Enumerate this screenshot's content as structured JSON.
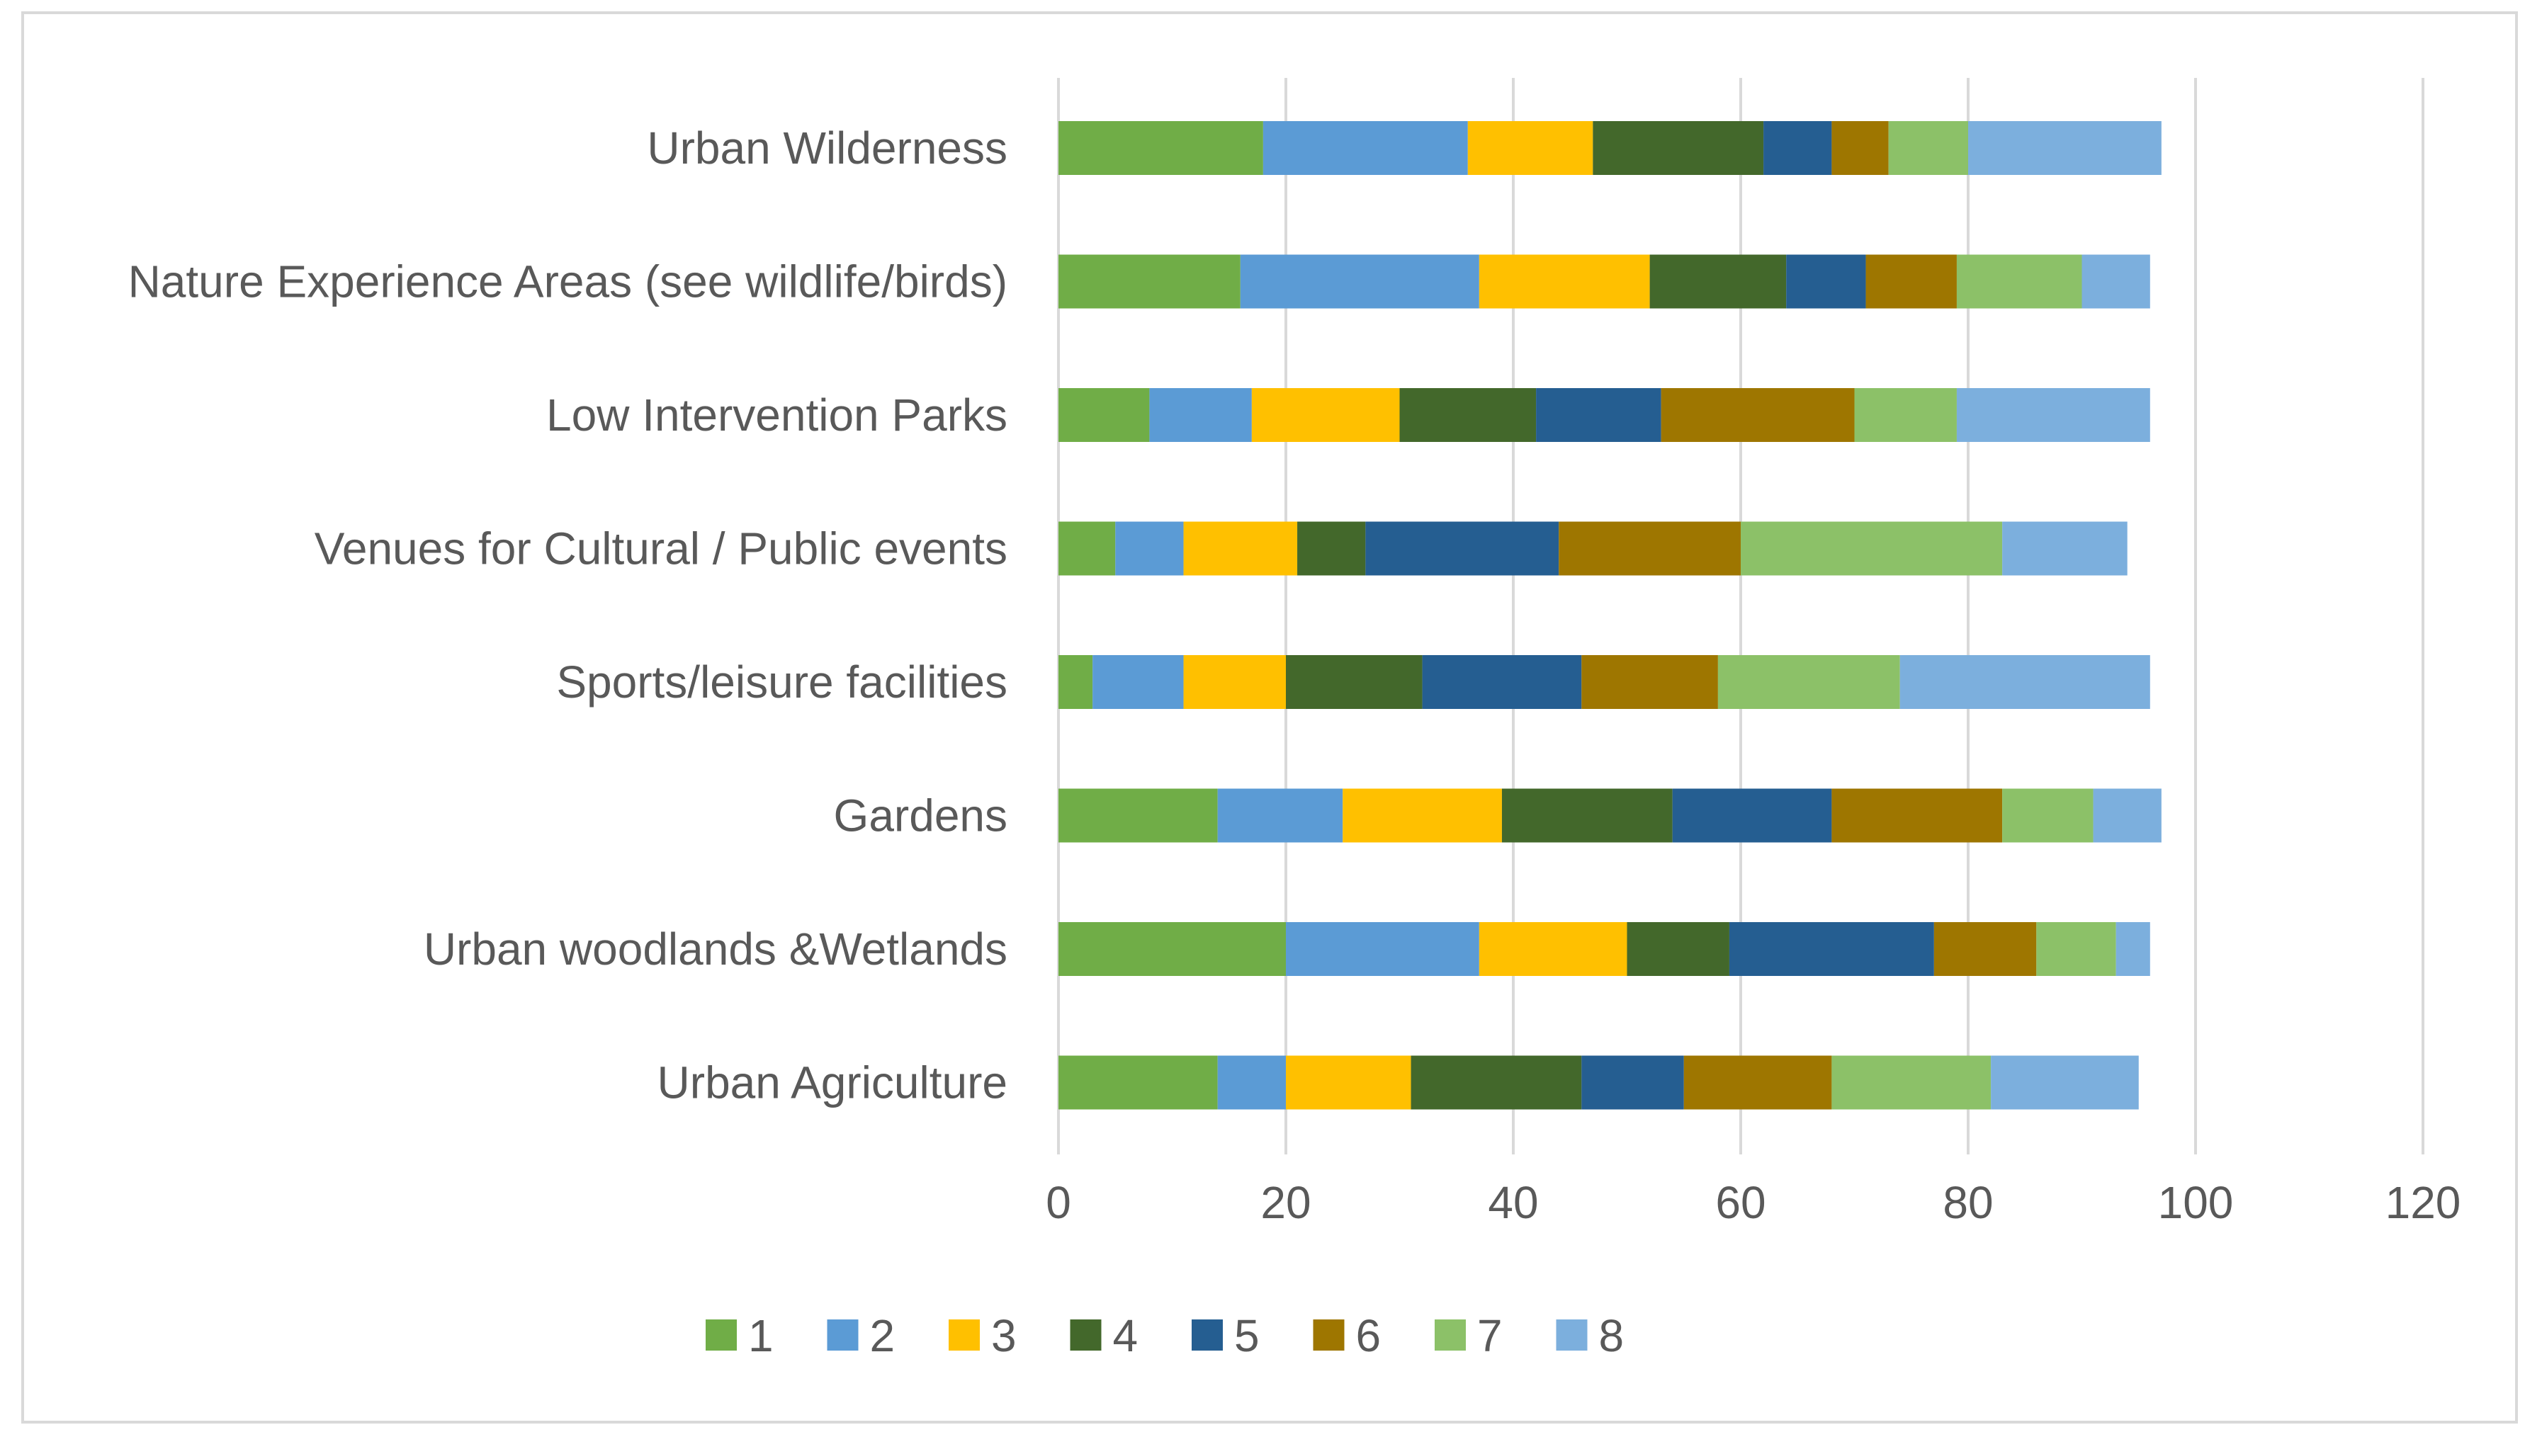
{
  "chart_data": {
    "type": "bar",
    "orientation": "horizontal",
    "stacked": true,
    "title": "",
    "xlabel": "",
    "ylabel": "",
    "xlim": [
      0,
      120
    ],
    "xticks": [
      0,
      20,
      40,
      60,
      80,
      100,
      120
    ],
    "grid": "vertical",
    "legend_position": "bottom",
    "categories": [
      "Urban Wilderness",
      "Nature Experience Areas (see wildlife/birds)",
      "Low Intervention Parks",
      "Venues for Cultural / Public events",
      "Sports/leisure facilities",
      "Gardens",
      "Urban woodlands &Wetlands",
      "Urban Agriculture"
    ],
    "series": [
      {
        "name": "1",
        "color": "#70ad47",
        "values": [
          18,
          16,
          8,
          5,
          3,
          14,
          20,
          14
        ]
      },
      {
        "name": "2",
        "color": "#5b9bd5",
        "values": [
          18,
          21,
          9,
          6,
          8,
          11,
          17,
          6
        ]
      },
      {
        "name": "3",
        "color": "#ffc000",
        "values": [
          11,
          15,
          13,
          10,
          9,
          14,
          13,
          11
        ]
      },
      {
        "name": "4",
        "color": "#43682b",
        "values": [
          15,
          12,
          12,
          6,
          12,
          15,
          9,
          15
        ]
      },
      {
        "name": "5",
        "color": "#255e91",
        "values": [
          6,
          7,
          11,
          17,
          14,
          14,
          18,
          9
        ]
      },
      {
        "name": "6",
        "color": "#9e7600",
        "values": [
          5,
          8,
          17,
          16,
          12,
          15,
          9,
          13
        ]
      },
      {
        "name": "7",
        "color": "#8cc168",
        "values": [
          7,
          11,
          9,
          23,
          16,
          8,
          7,
          14
        ]
      },
      {
        "name": "8",
        "color": "#7cafdd",
        "values": [
          17,
          6,
          17,
          11,
          22,
          6,
          3,
          13
        ]
      }
    ]
  }
}
